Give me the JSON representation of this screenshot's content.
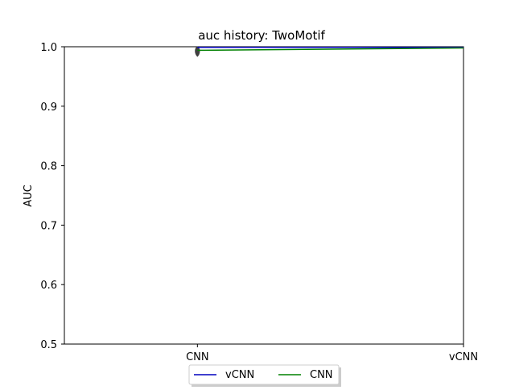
{
  "chart_data": {
    "type": "line",
    "title": "auc history:  TwoMotif",
    "xlabel": "",
    "ylabel": "AUC",
    "categories": [
      "CNN",
      "vCNN"
    ],
    "ylim": [
      0.5,
      1.0
    ],
    "yticks": [
      "0.5",
      "0.6",
      "0.7",
      "0.8",
      "0.9",
      "1.0"
    ],
    "xlim": [
      0,
      3
    ],
    "grid": false,
    "legend_position": "bottom-center",
    "series": [
      {
        "name": "vCNN",
        "color": "#0000bf",
        "x": [
          1,
          3
        ],
        "y": [
          0.999,
          0.999
        ]
      },
      {
        "name": "CNN",
        "color": "#008000",
        "x": [
          1,
          3
        ],
        "y": [
          0.994,
          0.998
        ]
      }
    ],
    "annotations": [
      {
        "type": "violin-marker",
        "x": 1,
        "y": 0.992,
        "color": "#404040"
      }
    ]
  }
}
